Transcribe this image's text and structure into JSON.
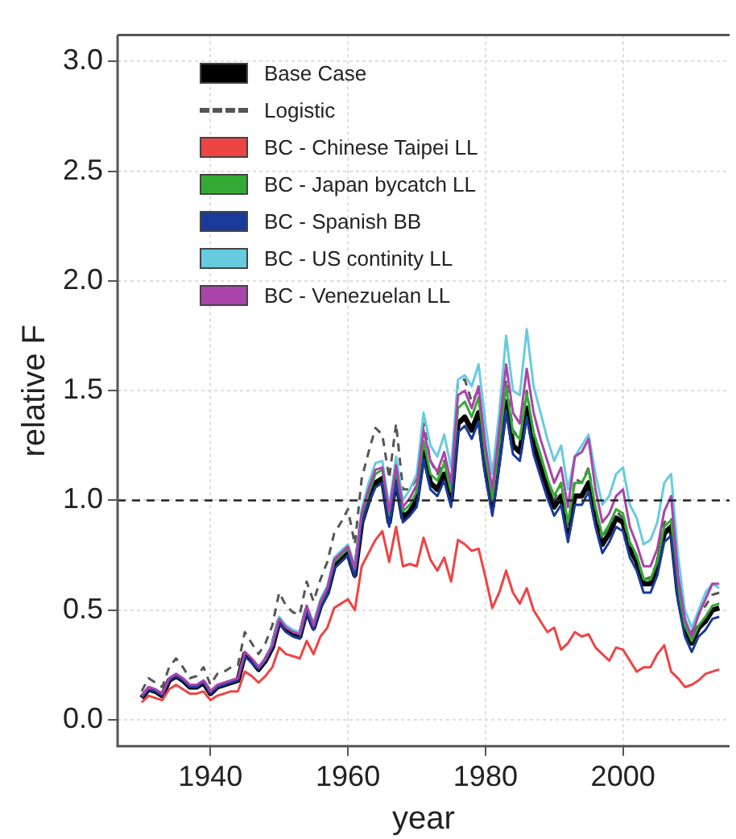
{
  "chart_data": {
    "type": "line",
    "xlabel": "year",
    "ylabel": "relative F",
    "x": [
      1930,
      1931,
      1932,
      1933,
      1934,
      1935,
      1936,
      1937,
      1938,
      1939,
      1940,
      1941,
      1942,
      1943,
      1944,
      1945,
      1946,
      1947,
      1948,
      1949,
      1950,
      1951,
      1952,
      1953,
      1954,
      1955,
      1956,
      1957,
      1958,
      1959,
      1960,
      1961,
      1962,
      1963,
      1964,
      1965,
      1966,
      1967,
      1968,
      1969,
      1970,
      1971,
      1972,
      1973,
      1974,
      1975,
      1976,
      1977,
      1978,
      1979,
      1980,
      1981,
      1982,
      1983,
      1984,
      1985,
      1986,
      1987,
      1988,
      1989,
      1990,
      1991,
      1992,
      1993,
      1994,
      1995,
      1996,
      1997,
      1998,
      1999,
      2000,
      2001,
      2002,
      2003,
      2004,
      2005,
      2006,
      2007,
      2008,
      2009,
      2010,
      2011,
      2012,
      2013,
      2014
    ],
    "series": [
      {
        "name": "Base Case",
        "color": "#000000",
        "values": [
          0.1,
          0.14,
          0.13,
          0.11,
          0.18,
          0.2,
          0.18,
          0.15,
          0.15,
          0.17,
          0.12,
          0.15,
          0.16,
          0.17,
          0.18,
          0.3,
          0.27,
          0.23,
          0.27,
          0.33,
          0.45,
          0.41,
          0.39,
          0.38,
          0.5,
          0.42,
          0.52,
          0.58,
          0.7,
          0.73,
          0.76,
          0.66,
          0.9,
          1.0,
          1.08,
          1.1,
          0.9,
          1.1,
          0.92,
          0.95,
          1.0,
          1.22,
          1.08,
          1.05,
          1.12,
          1.0,
          1.35,
          1.38,
          1.32,
          1.4,
          1.15,
          0.97,
          1.2,
          1.45,
          1.25,
          1.22,
          1.42,
          1.25,
          1.15,
          1.05,
          0.97,
          1.02,
          0.85,
          1.02,
          1.02,
          1.08,
          0.92,
          0.8,
          0.85,
          0.92,
          0.9,
          0.78,
          0.72,
          0.62,
          0.62,
          0.7,
          0.85,
          0.88,
          0.58,
          0.42,
          0.35,
          0.42,
          0.45,
          0.5,
          0.51
        ]
      },
      {
        "name": "Logistic",
        "color": "#555555",
        "line_style": "dashed",
        "values": [
          0.13,
          0.19,
          0.17,
          0.15,
          0.24,
          0.28,
          0.24,
          0.19,
          0.2,
          0.24,
          0.16,
          0.21,
          0.22,
          0.24,
          0.25,
          0.4,
          0.35,
          0.3,
          0.35,
          0.43,
          0.58,
          0.52,
          0.49,
          0.48,
          0.63,
          0.54,
          0.64,
          0.72,
          0.85,
          0.9,
          0.96,
          0.8,
          1.1,
          1.22,
          1.33,
          1.3,
          1.1,
          1.35,
          1.05,
          1.05,
          1.1,
          1.35,
          1.18,
          1.12,
          1.18,
          1.05,
          1.55,
          1.55,
          1.45,
          1.5,
          1.22,
          1.0,
          1.25,
          1.55,
          1.32,
          1.28,
          1.5,
          1.3,
          1.2,
          1.1,
          1.0,
          1.08,
          0.88,
          1.1,
          1.08,
          1.15,
          0.96,
          0.82,
          0.88,
          0.95,
          0.92,
          0.8,
          0.74,
          0.64,
          0.65,
          0.72,
          0.9,
          0.92,
          0.6,
          0.44,
          0.4,
          0.48,
          0.52,
          0.57,
          0.58
        ]
      },
      {
        "name": "BC - Chinese Taipei LL",
        "color": "#ee4444",
        "values": [
          0.08,
          0.11,
          0.1,
          0.09,
          0.14,
          0.16,
          0.14,
          0.12,
          0.12,
          0.13,
          0.09,
          0.11,
          0.12,
          0.13,
          0.13,
          0.22,
          0.2,
          0.17,
          0.2,
          0.24,
          0.33,
          0.3,
          0.29,
          0.28,
          0.36,
          0.3,
          0.38,
          0.42,
          0.51,
          0.53,
          0.55,
          0.5,
          0.7,
          0.76,
          0.82,
          0.86,
          0.72,
          0.88,
          0.7,
          0.71,
          0.7,
          0.83,
          0.73,
          0.68,
          0.74,
          0.63,
          0.82,
          0.8,
          0.77,
          0.78,
          0.65,
          0.51,
          0.58,
          0.68,
          0.58,
          0.53,
          0.6,
          0.5,
          0.45,
          0.4,
          0.42,
          0.32,
          0.35,
          0.4,
          0.38,
          0.39,
          0.33,
          0.3,
          0.27,
          0.33,
          0.32,
          0.27,
          0.22,
          0.24,
          0.24,
          0.3,
          0.34,
          0.22,
          0.19,
          0.15,
          0.16,
          0.18,
          0.21,
          0.22,
          0.23
        ]
      },
      {
        "name": "BC - Japan bycatch LL",
        "color": "#33aa33",
        "values": [
          null,
          null,
          null,
          null,
          null,
          null,
          null,
          null,
          null,
          null,
          null,
          null,
          null,
          null,
          null,
          null,
          null,
          null,
          null,
          null,
          null,
          null,
          null,
          null,
          null,
          0.43,
          0.53,
          0.6,
          0.72,
          0.75,
          0.78,
          0.68,
          0.93,
          1.03,
          1.12,
          1.14,
          0.93,
          1.14,
          0.95,
          0.98,
          1.04,
          1.27,
          1.12,
          1.09,
          1.17,
          1.04,
          1.42,
          1.45,
          1.38,
          1.47,
          1.2,
          1.01,
          1.26,
          1.52,
          1.31,
          1.28,
          1.49,
          1.31,
          1.21,
          1.1,
          1.02,
          1.08,
          0.9,
          1.08,
          1.08,
          1.14,
          0.97,
          0.84,
          0.89,
          0.96,
          0.94,
          0.81,
          0.75,
          0.64,
          0.64,
          0.72,
          0.88,
          0.91,
          0.6,
          0.43,
          0.36,
          0.43,
          0.47,
          0.52,
          0.53
        ]
      },
      {
        "name": "BC - Spanish BB",
        "color": "#1a3a99",
        "values": [
          0.1,
          0.14,
          0.13,
          0.11,
          0.18,
          0.2,
          0.18,
          0.15,
          0.15,
          0.17,
          0.12,
          0.15,
          0.16,
          0.17,
          0.18,
          0.29,
          0.26,
          0.23,
          0.27,
          0.33,
          0.44,
          0.4,
          0.38,
          0.37,
          0.49,
          0.41,
          0.51,
          0.57,
          0.69,
          0.72,
          0.75,
          0.65,
          0.89,
          0.99,
          1.06,
          1.08,
          0.88,
          1.08,
          0.9,
          0.93,
          0.97,
          1.19,
          1.05,
          1.02,
          1.09,
          0.97,
          1.31,
          1.34,
          1.28,
          1.36,
          1.11,
          0.93,
          1.16,
          1.41,
          1.21,
          1.18,
          1.38,
          1.21,
          1.11,
          1.01,
          0.93,
          0.98,
          0.81,
          0.98,
          0.98,
          1.04,
          0.88,
          0.76,
          0.81,
          0.88,
          0.86,
          0.74,
          0.68,
          0.58,
          0.58,
          0.66,
          0.81,
          0.84,
          0.54,
          0.38,
          0.31,
          0.38,
          0.41,
          0.46,
          0.47
        ]
      },
      {
        "name": "BC - US continity LL",
        "color": "#66ccdd",
        "values": [
          null,
          null,
          null,
          null,
          null,
          null,
          null,
          null,
          null,
          null,
          null,
          null,
          null,
          null,
          null,
          null,
          null,
          0.24,
          0.28,
          0.35,
          0.47,
          0.43,
          0.41,
          0.4,
          0.52,
          0.44,
          0.55,
          0.61,
          0.74,
          0.77,
          0.8,
          0.7,
          0.96,
          1.08,
          1.17,
          1.18,
          0.97,
          1.2,
          1.0,
          1.05,
          1.12,
          1.4,
          1.25,
          1.2,
          1.3,
          1.15,
          1.55,
          1.57,
          1.52,
          1.62,
          1.35,
          1.12,
          1.4,
          1.75,
          1.5,
          1.48,
          1.78,
          1.52,
          1.4,
          1.28,
          1.18,
          1.25,
          1.05,
          1.2,
          1.25,
          1.3,
          1.12,
          0.98,
          1.02,
          1.12,
          1.15,
          0.98,
          0.92,
          0.8,
          0.82,
          0.9,
          1.08,
          1.12,
          0.75,
          0.5,
          0.42,
          0.5,
          0.58,
          0.62,
          0.6
        ]
      },
      {
        "name": "BC - Venezuelan LL",
        "color": "#aa44aa",
        "values": [
          0.11,
          0.15,
          0.14,
          0.12,
          0.19,
          0.21,
          0.19,
          0.16,
          0.16,
          0.18,
          0.13,
          0.16,
          0.17,
          0.18,
          0.19,
          0.31,
          0.28,
          0.24,
          0.28,
          0.34,
          0.46,
          0.42,
          0.4,
          0.39,
          0.52,
          0.43,
          0.54,
          0.6,
          0.73,
          0.76,
          0.79,
          0.69,
          0.94,
          1.05,
          1.14,
          1.15,
          0.95,
          1.16,
          0.97,
          1.01,
          1.07,
          1.32,
          1.18,
          1.13,
          1.22,
          1.08,
          1.48,
          1.5,
          1.42,
          1.52,
          1.25,
          1.05,
          1.32,
          1.62,
          1.4,
          1.35,
          1.6,
          1.4,
          1.28,
          1.18,
          1.08,
          1.15,
          0.97,
          1.2,
          1.22,
          1.28,
          1.05,
          0.9,
          0.94,
          1.02,
          1.05,
          0.88,
          0.8,
          0.7,
          0.7,
          0.78,
          0.95,
          1.02,
          0.66,
          0.46,
          0.38,
          0.48,
          0.55,
          0.62,
          0.62
        ]
      }
    ],
    "xlim": [
      1926.5,
      2015.5
    ],
    "xticks": [
      1940,
      1960,
      1980,
      2000
    ],
    "ylim": [
      -0.12,
      3.12
    ],
    "yticks": [
      {
        "value": 0,
        "label": "0.0"
      },
      {
        "value": 0.5,
        "label": "0.5"
      },
      {
        "value": 1,
        "label": "1.0"
      },
      {
        "value": 1.5,
        "label": "1.5"
      },
      {
        "value": 2,
        "label": "2.0"
      },
      {
        "value": 2.5,
        "label": "2.5"
      },
      {
        "value": 3,
        "label": "3.0"
      }
    ],
    "ref_lines": [
      {
        "axis": "y",
        "value": 1,
        "color": "#222222",
        "line_style": "dashed"
      }
    ],
    "grid": true,
    "legend": "top left",
    "marker": "none",
    "line_style": "solid"
  }
}
